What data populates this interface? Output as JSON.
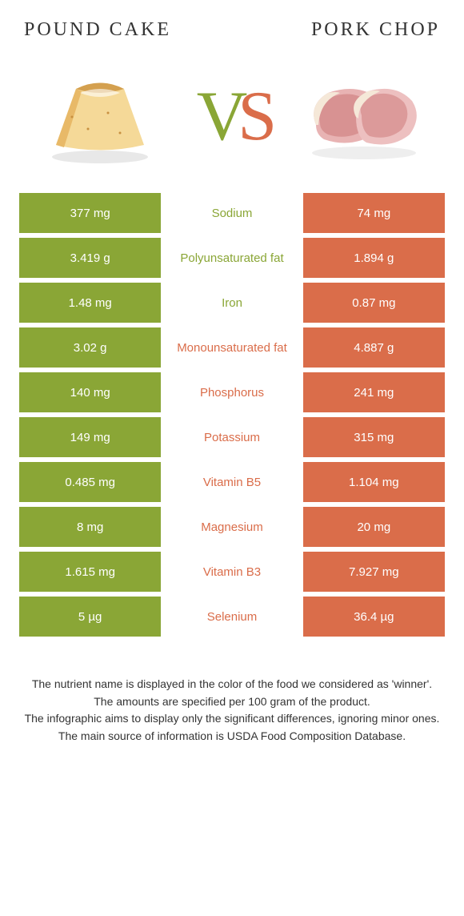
{
  "header": {
    "left_title": "Pound cake",
    "right_title": "Pork chop",
    "vs_v": "V",
    "vs_s": "S"
  },
  "colors": {
    "left": "#8aa636",
    "right": "#da6d4a",
    "text": "#333333",
    "background": "#ffffff"
  },
  "rows": [
    {
      "left": "377 mg",
      "label": "Sodium",
      "right": "74 mg",
      "winner": "left"
    },
    {
      "left": "3.419 g",
      "label": "Polyunsaturated fat",
      "right": "1.894 g",
      "winner": "left"
    },
    {
      "left": "1.48 mg",
      "label": "Iron",
      "right": "0.87 mg",
      "winner": "left"
    },
    {
      "left": "3.02 g",
      "label": "Monounsaturated fat",
      "right": "4.887 g",
      "winner": "right"
    },
    {
      "left": "140 mg",
      "label": "Phosphorus",
      "right": "241 mg",
      "winner": "right"
    },
    {
      "left": "149 mg",
      "label": "Potassium",
      "right": "315 mg",
      "winner": "right"
    },
    {
      "left": "0.485 mg",
      "label": "Vitamin B5",
      "right": "1.104 mg",
      "winner": "right"
    },
    {
      "left": "8 mg",
      "label": "Magnesium",
      "right": "20 mg",
      "winner": "right"
    },
    {
      "left": "1.615 mg",
      "label": "Vitamin B3",
      "right": "7.927 mg",
      "winner": "right"
    },
    {
      "left": "5 µg",
      "label": "Selenium",
      "right": "36.4 µg",
      "winner": "right"
    }
  ],
  "footer": {
    "line1": "The nutrient name is displayed in the color of the food we considered as 'winner'.",
    "line2": "The amounts are specified per 100 gram of the product.",
    "line3": "The infographic aims to display only the significant differences, ignoring minor ones.",
    "line4": "The main source of information is USDA Food Composition Database."
  }
}
